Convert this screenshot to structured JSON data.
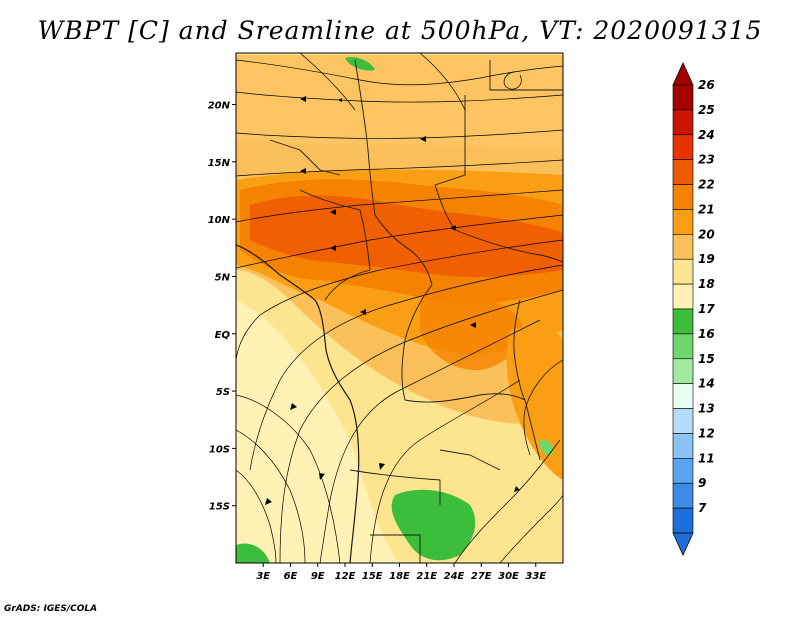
{
  "title": "WBPT [C] and Sreamline at 500hPa, VT: 2020091315",
  "credit": "GrADS: IGES/COLA",
  "map": {
    "lon_range": [
      0,
      36
    ],
    "lat_range": [
      -20,
      24.5
    ],
    "lat_ticks": [
      {
        "value": 20,
        "label": "20N"
      },
      {
        "value": 15,
        "label": "15N"
      },
      {
        "value": 10,
        "label": "10N"
      },
      {
        "value": 5,
        "label": "5N"
      },
      {
        "value": 0,
        "label": "EQ"
      },
      {
        "value": -5,
        "label": "5S"
      },
      {
        "value": -10,
        "label": "10S"
      },
      {
        "value": -15,
        "label": "15S"
      }
    ],
    "lon_ticks": [
      {
        "value": 3,
        "label": "3E"
      },
      {
        "value": 6,
        "label": "6E"
      },
      {
        "value": 9,
        "label": "9E"
      },
      {
        "value": 12,
        "label": "12E"
      },
      {
        "value": 15,
        "label": "15E"
      },
      {
        "value": 18,
        "label": "18E"
      },
      {
        "value": 21,
        "label": "21E"
      },
      {
        "value": 24,
        "label": "24E"
      },
      {
        "value": 27,
        "label": "27E"
      },
      {
        "value": 30,
        "label": "30E"
      },
      {
        "value": 33,
        "label": "33E"
      }
    ]
  },
  "colorbar": {
    "levels": [
      {
        "label": "26",
        "color": "#a50000"
      },
      {
        "label": "25",
        "color": "#c81400"
      },
      {
        "label": "24",
        "color": "#e63200"
      },
      {
        "label": "23",
        "color": "#f05a00"
      },
      {
        "label": "22",
        "color": "#f58200"
      },
      {
        "label": "21",
        "color": "#fa9f14"
      },
      {
        "label": "20",
        "color": "#fcc05a"
      },
      {
        "label": "19",
        "color": "#fde48f"
      },
      {
        "label": "18",
        "color": "#fff2b4"
      },
      {
        "label": "17",
        "color": "#3cbe3c"
      },
      {
        "label": "16",
        "color": "#6fd66f"
      },
      {
        "label": "15",
        "color": "#a0eba0"
      },
      {
        "label": "14",
        "color": "#e6fff0"
      },
      {
        "label": "13",
        "color": "#b4dcfa"
      },
      {
        "label": "12",
        "color": "#8cc3f5"
      },
      {
        "label": "11",
        "color": "#5aa5f0"
      },
      {
        "label": "9",
        "color": "#3c8ce6"
      },
      {
        "label": "7",
        "color": "#1e6edc"
      }
    ],
    "top_arrow_color": "#a50000",
    "bottom_arrow_color": "#1e6edc"
  }
}
